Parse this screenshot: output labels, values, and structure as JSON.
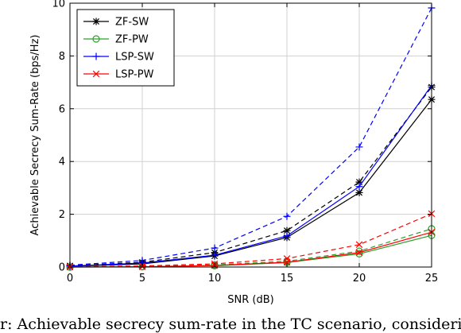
{
  "chart_data": {
    "type": "line",
    "xlabel": "SNR (dB)",
    "ylabel": "Achievable Secrecy Sum-Rate (bps/Hz)",
    "xlim": [
      0,
      25
    ],
    "ylim": [
      0,
      10
    ],
    "xticks": [
      "0",
      "5",
      "10",
      "15",
      "20",
      "25"
    ],
    "yticks": [
      "0",
      "2",
      "4",
      "6",
      "8",
      "10"
    ],
    "grid": true,
    "legend_position": "top-left",
    "x": [
      0,
      5,
      10,
      15,
      20,
      25
    ],
    "series": [
      {
        "name": "ZF-SW",
        "color": "#000000",
        "marker": "star",
        "style": "solid",
        "values": [
          0.03,
          0.12,
          0.42,
          1.12,
          2.82,
          6.35
        ]
      },
      {
        "name": "ZF-SW (dashed)",
        "color": "#000000",
        "marker": "star",
        "style": "dashed",
        "legend": false,
        "values": [
          0.05,
          0.18,
          0.55,
          1.38,
          3.22,
          6.82
        ]
      },
      {
        "name": "ZF-PW",
        "color": "#2ca02c",
        "marker": "circle",
        "style": "solid",
        "values": [
          0.0,
          0.01,
          0.05,
          0.17,
          0.5,
          1.2
        ]
      },
      {
        "name": "ZF-PW (dashed)",
        "color": "#2ca02c",
        "marker": "circle",
        "style": "dashed",
        "legend": false,
        "values": [
          0.0,
          0.02,
          0.08,
          0.22,
          0.6,
          1.45
        ]
      },
      {
        "name": "LSP-SW",
        "color": "#0000ff",
        "marker": "plus",
        "style": "solid",
        "values": [
          0.04,
          0.15,
          0.45,
          1.18,
          3.05,
          6.88
        ]
      },
      {
        "name": "LSP-SW (dashed)",
        "color": "#0000ff",
        "marker": "plus",
        "style": "dashed",
        "legend": false,
        "values": [
          0.07,
          0.25,
          0.72,
          1.92,
          4.55,
          9.82
        ]
      },
      {
        "name": "LSP-PW",
        "color": "#ff0000",
        "marker": "x",
        "style": "solid",
        "values": [
          0.0,
          0.01,
          0.06,
          0.18,
          0.55,
          1.32
        ]
      },
      {
        "name": "LSP-PW (dashed)",
        "color": "#ff0000",
        "marker": "x",
        "style": "dashed",
        "legend": false,
        "values": [
          0.01,
          0.04,
          0.12,
          0.32,
          0.85,
          2.02
        ]
      }
    ]
  },
  "caption": "r: Achievable secrecy sum-rate in the TC scenario, considering"
}
